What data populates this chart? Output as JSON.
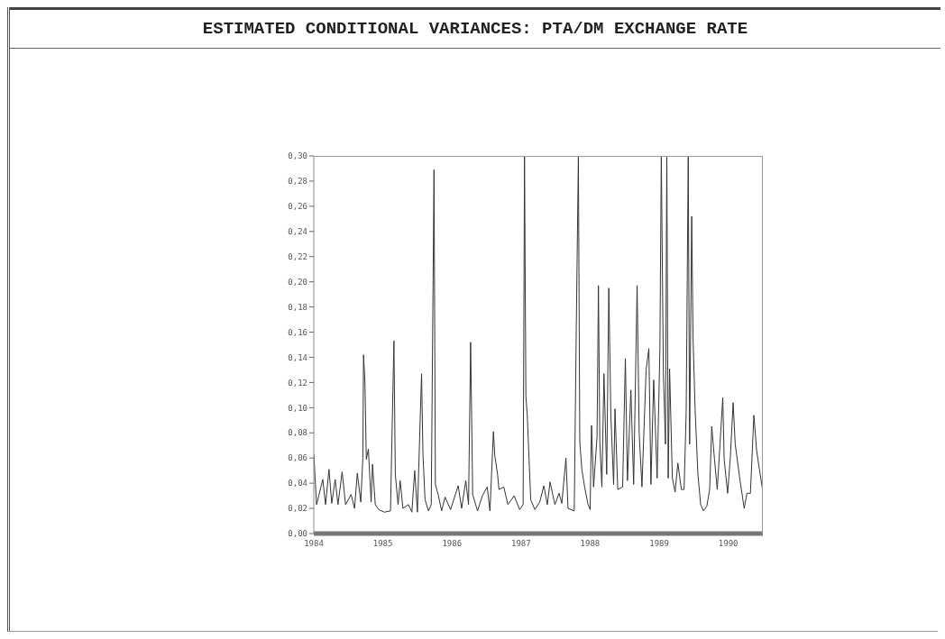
{
  "chart_data": {
    "type": "line",
    "title": "ESTIMATED CONDITIONAL VARIANCES: PTA/DM EXCHANGE RATE",
    "xlim": [
      1984,
      1990.5
    ],
    "xticks": [
      1984,
      1985,
      1986,
      1987,
      1988,
      1989,
      1990
    ],
    "ylim": [
      0,
      0.3
    ],
    "yticks": [
      {
        "value": 0,
        "label": "0,00"
      },
      {
        "value": 0.02,
        "label": "0,02"
      },
      {
        "value": 0.04,
        "label": "0,04"
      },
      {
        "value": 0.06,
        "label": "0,06"
      },
      {
        "value": 0.08,
        "label": "0,08"
      },
      {
        "value": 0.1,
        "label": "0,10"
      },
      {
        "value": 0.12,
        "label": "0,12"
      },
      {
        "value": 0.14,
        "label": "0,14"
      },
      {
        "value": 0.16,
        "label": "0,16"
      },
      {
        "value": 0.18,
        "label": "0,18"
      },
      {
        "value": 0.2,
        "label": "0,20"
      },
      {
        "value": 0.22,
        "label": "0,22"
      },
      {
        "value": 0.24,
        "label": "0,24"
      },
      {
        "value": 0.26,
        "label": "0,26"
      },
      {
        "value": 0.28,
        "label": "0,28"
      },
      {
        "value": 0.3,
        "label": "0,30"
      }
    ],
    "marker": "none",
    "line_style": "solid",
    "x": [
      1984.0,
      1984.04,
      1984.13,
      1984.17,
      1984.22,
      1984.26,
      1984.31,
      1984.35,
      1984.41,
      1984.46,
      1984.54,
      1984.59,
      1984.63,
      1984.68,
      1984.71,
      1984.72,
      1984.74,
      1984.76,
      1984.79,
      1984.83,
      1984.85,
      1984.89,
      1984.94,
      1985.02,
      1985.11,
      1985.16,
      1985.18,
      1985.22,
      1985.25,
      1985.29,
      1985.37,
      1985.42,
      1985.46,
      1985.5,
      1985.56,
      1985.58,
      1985.61,
      1985.66,
      1985.7,
      1985.74,
      1985.76,
      1985.8,
      1985.85,
      1985.9,
      1985.98,
      1986.09,
      1986.14,
      1986.2,
      1986.24,
      1986.27,
      1986.3,
      1986.37,
      1986.44,
      1986.51,
      1986.55,
      1986.6,
      1986.62,
      1986.66,
      1986.68,
      1986.75,
      1986.81,
      1986.9,
      1986.98,
      1987.03,
      1987.05,
      1987.07,
      1987.09,
      1987.14,
      1987.2,
      1987.27,
      1987.33,
      1987.38,
      1987.42,
      1987.49,
      1987.55,
      1987.59,
      1987.65,
      1987.68,
      1987.77,
      1987.8,
      1987.83,
      1987.85,
      1987.88,
      1987.92,
      1987.97,
      1988.0,
      1988.02,
      1988.05,
      1988.1,
      1988.12,
      1988.14,
      1988.17,
      1988.2,
      1988.24,
      1988.27,
      1988.3,
      1988.34,
      1988.36,
      1988.4,
      1988.47,
      1988.51,
      1988.54,
      1988.59,
      1988.63,
      1988.68,
      1988.71,
      1988.75,
      1988.81,
      1988.85,
      1988.88,
      1988.92,
      1988.97,
      1989.01,
      1989.03,
      1989.06,
      1989.09,
      1989.11,
      1989.13,
      1989.15,
      1989.19,
      1989.23,
      1989.27,
      1989.32,
      1989.36,
      1989.39,
      1989.42,
      1989.44,
      1989.47,
      1989.49,
      1989.52,
      1989.56,
      1989.6,
      1989.64,
      1989.69,
      1989.73,
      1989.76,
      1989.8,
      1989.84,
      1989.88,
      1989.92,
      1989.94,
      1989.99,
      1990.03,
      1990.07,
      1990.1,
      1990.17,
      1990.23,
      1990.27,
      1990.32,
      1990.37,
      1990.41,
      1990.45,
      1990.49,
      1990.5
    ],
    "series": [
      {
        "color": "#333333",
        "values": [
          0.063,
          0.023,
          0.043,
          0.023,
          0.051,
          0.024,
          0.043,
          0.023,
          0.049,
          0.023,
          0.031,
          0.02,
          0.048,
          0.025,
          0.06,
          0.142,
          0.121,
          0.059,
          0.067,
          0.025,
          0.055,
          0.023,
          0.019,
          0.017,
          0.018,
          0.153,
          0.047,
          0.023,
          0.042,
          0.02,
          0.023,
          0.017,
          0.05,
          0.017,
          0.127,
          0.063,
          0.027,
          0.018,
          0.023,
          0.289,
          0.039,
          0.031,
          0.018,
          0.029,
          0.019,
          0.038,
          0.02,
          0.042,
          0.023,
          0.152,
          0.031,
          0.018,
          0.03,
          0.037,
          0.018,
          0.081,
          0.062,
          0.047,
          0.035,
          0.037,
          0.023,
          0.03,
          0.019,
          0.023,
          0.3,
          0.109,
          0.094,
          0.027,
          0.019,
          0.025,
          0.038,
          0.023,
          0.041,
          0.023,
          0.032,
          0.024,
          0.06,
          0.02,
          0.018,
          0.166,
          0.3,
          0.073,
          0.051,
          0.037,
          0.023,
          0.019,
          0.086,
          0.037,
          0.077,
          0.197,
          0.073,
          0.037,
          0.127,
          0.047,
          0.195,
          0.094,
          0.039,
          0.099,
          0.035,
          0.037,
          0.139,
          0.042,
          0.114,
          0.039,
          0.197,
          0.08,
          0.037,
          0.13,
          0.147,
          0.039,
          0.122,
          0.044,
          0.147,
          0.3,
          0.128,
          0.071,
          0.3,
          0.044,
          0.131,
          0.044,
          0.033,
          0.056,
          0.035,
          0.035,
          0.096,
          0.3,
          0.071,
          0.252,
          0.154,
          0.098,
          0.047,
          0.023,
          0.018,
          0.022,
          0.035,
          0.085,
          0.059,
          0.035,
          0.071,
          0.108,
          0.059,
          0.032,
          0.061,
          0.104,
          0.071,
          0.042,
          0.02,
          0.032,
          0.032,
          0.094,
          0.066,
          0.051,
          0.037,
          0.031
        ]
      }
    ]
  }
}
